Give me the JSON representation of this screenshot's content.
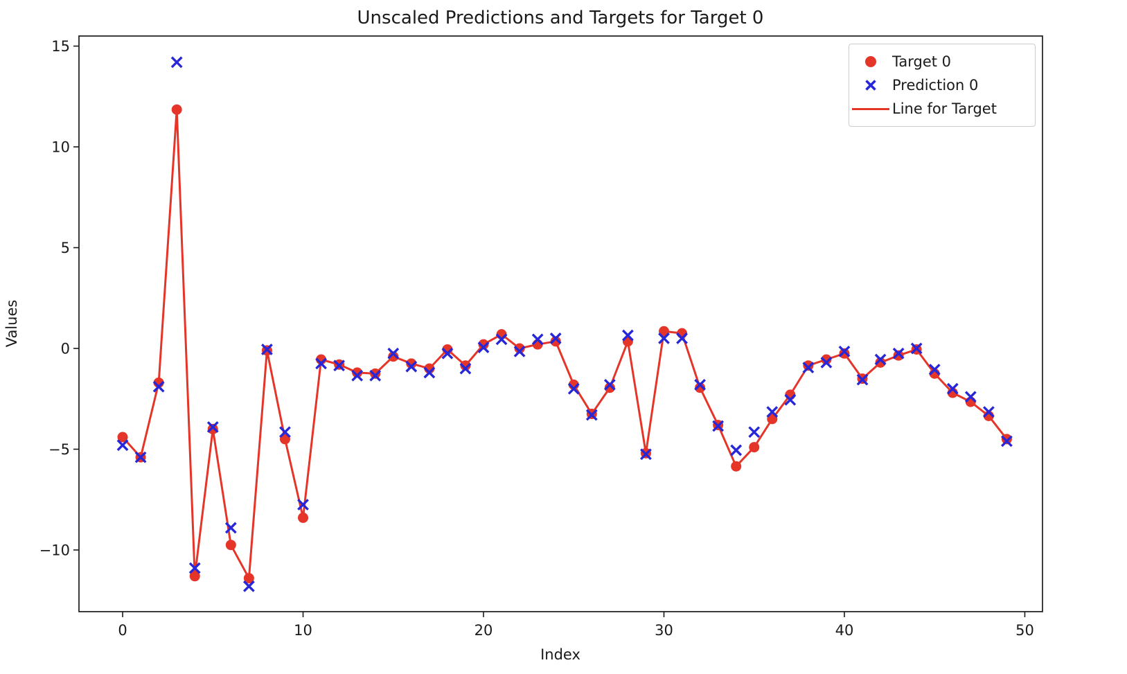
{
  "chart_data": {
    "type": "scatter",
    "title": "Unscaled Predictions and Targets for Target 0",
    "xlabel": "Index",
    "ylabel": "Values",
    "x": [
      0,
      1,
      2,
      3,
      4,
      5,
      6,
      7,
      8,
      9,
      10,
      11,
      12,
      13,
      14,
      15,
      16,
      17,
      18,
      19,
      20,
      21,
      22,
      23,
      24,
      25,
      26,
      27,
      28,
      29,
      30,
      31,
      32,
      33,
      34,
      35,
      36,
      37,
      38,
      39,
      40,
      41,
      42,
      43,
      44,
      45,
      46,
      47,
      48,
      49
    ],
    "series": [
      {
        "name": "Target 0",
        "marker": "circle",
        "color": "#e53529",
        "values": [
          -4.4,
          -5.4,
          -1.7,
          11.85,
          -11.3,
          -4.0,
          -9.75,
          -11.4,
          -0.1,
          -4.5,
          -8.4,
          -0.55,
          -0.8,
          -1.2,
          -1.25,
          -0.4,
          -0.75,
          -1.0,
          -0.05,
          -0.85,
          0.2,
          0.7,
          0.0,
          0.2,
          0.35,
          -1.8,
          -3.25,
          -1.95,
          0.35,
          -5.2,
          0.85,
          0.75,
          -1.95,
          -3.8,
          -5.85,
          -4.9,
          -3.5,
          -2.3,
          -0.85,
          -0.55,
          -0.25,
          -1.5,
          -0.7,
          -0.35,
          -0.05,
          -1.25,
          -2.2,
          -2.65,
          -3.35,
          -4.5
        ]
      },
      {
        "name": "Prediction 0",
        "marker": "x",
        "color": "#2727d8",
        "values": [
          -4.8,
          -5.4,
          -1.9,
          14.2,
          -10.9,
          -3.9,
          -8.9,
          -11.8,
          -0.05,
          -4.15,
          -7.75,
          -0.75,
          -0.85,
          -1.35,
          -1.35,
          -0.25,
          -0.9,
          -1.2,
          -0.25,
          -1.0,
          0.05,
          0.45,
          -0.15,
          0.45,
          0.5,
          -2.0,
          -3.3,
          -1.8,
          0.65,
          -5.25,
          0.5,
          0.5,
          -1.8,
          -3.85,
          -5.05,
          -4.15,
          -3.15,
          -2.55,
          -0.95,
          -0.7,
          -0.15,
          -1.55,
          -0.55,
          -0.25,
          0.0,
          -1.05,
          -2.0,
          -2.4,
          -3.15,
          -4.6
        ]
      },
      {
        "name": "Line for Target",
        "marker": "line",
        "color": "#e53529",
        "follows": "Target 0"
      }
    ],
    "legend": {
      "position": "upper right",
      "items": [
        {
          "label": "Target 0",
          "marker": "circle",
          "color": "#e53529"
        },
        {
          "label": "Prediction 0",
          "marker": "x",
          "color": "#2727d8"
        },
        {
          "label": "Line for Target",
          "marker": "line",
          "color": "#e53529"
        }
      ]
    },
    "xlim": [
      -2.42,
      50.98
    ],
    "ylim": [
      -13.06,
      15.5
    ],
    "x_ticks": {
      "values": [
        0,
        10,
        20,
        30,
        40,
        50
      ],
      "labels": [
        "0",
        "10",
        "20",
        "30",
        "40",
        "50"
      ]
    },
    "y_ticks": {
      "values": [
        15,
        10,
        5,
        0,
        -5,
        -10
      ],
      "labels": [
        "15",
        "10",
        "5",
        "0",
        "−5",
        "−10"
      ]
    },
    "grid": false
  },
  "colors": {
    "target": "#e53529",
    "prediction": "#2727d8",
    "line": "#e53529",
    "axis": "#1a1a1a",
    "legend_border": "#cccccc",
    "background": "#ffffff"
  }
}
